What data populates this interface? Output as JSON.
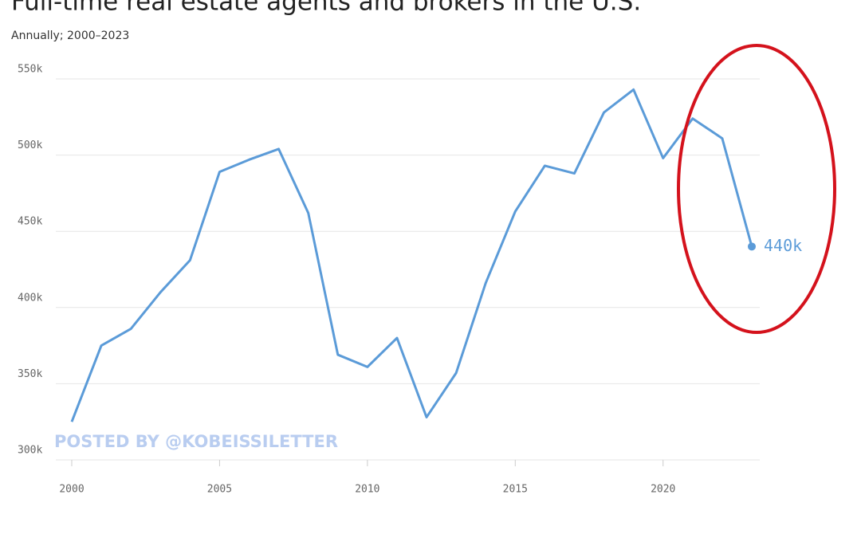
{
  "chart_data": {
    "type": "line",
    "title": "Full-time real estate agents and brokers in the U.S.",
    "subtitle": "Annually; 2000–2023",
    "watermark": "POSTED BY @KOBEISSILETTER",
    "x": [
      2000,
      2001,
      2002,
      2003,
      2004,
      2005,
      2006,
      2007,
      2008,
      2009,
      2010,
      2011,
      2012,
      2013,
      2014,
      2015,
      2016,
      2017,
      2018,
      2019,
      2020,
      2021,
      2022,
      2023
    ],
    "series": [
      {
        "color": "#5b9bd8",
        "values": [
          325000,
          375000,
          386000,
          410000,
          431000,
          489000,
          497000,
          504000,
          462000,
          369000,
          361000,
          380000,
          328000,
          357000,
          416000,
          463000,
          493000,
          488000,
          528000,
          543000,
          498000,
          524000,
          511000,
          440000
        ],
        "value_labels": [
          null,
          null,
          null,
          null,
          null,
          null,
          null,
          null,
          null,
          null,
          null,
          null,
          null,
          null,
          null,
          null,
          null,
          null,
          null,
          null,
          null,
          null,
          null,
          "440k"
        ]
      }
    ],
    "xlim": [
      2000,
      2023
    ],
    "xticks": [
      2000,
      2005,
      2010,
      2015,
      2020
    ],
    "ylim": [
      300000,
      550000
    ],
    "yticks": [
      {
        "value": 300000,
        "label": "300k"
      },
      {
        "value": 350000,
        "label": "350k"
      },
      {
        "value": 400000,
        "label": "400k"
      },
      {
        "value": 450000,
        "label": "450k"
      },
      {
        "value": 500000,
        "label": "500k"
      },
      {
        "value": 550000,
        "label": "550k"
      }
    ],
    "grid": true
  }
}
